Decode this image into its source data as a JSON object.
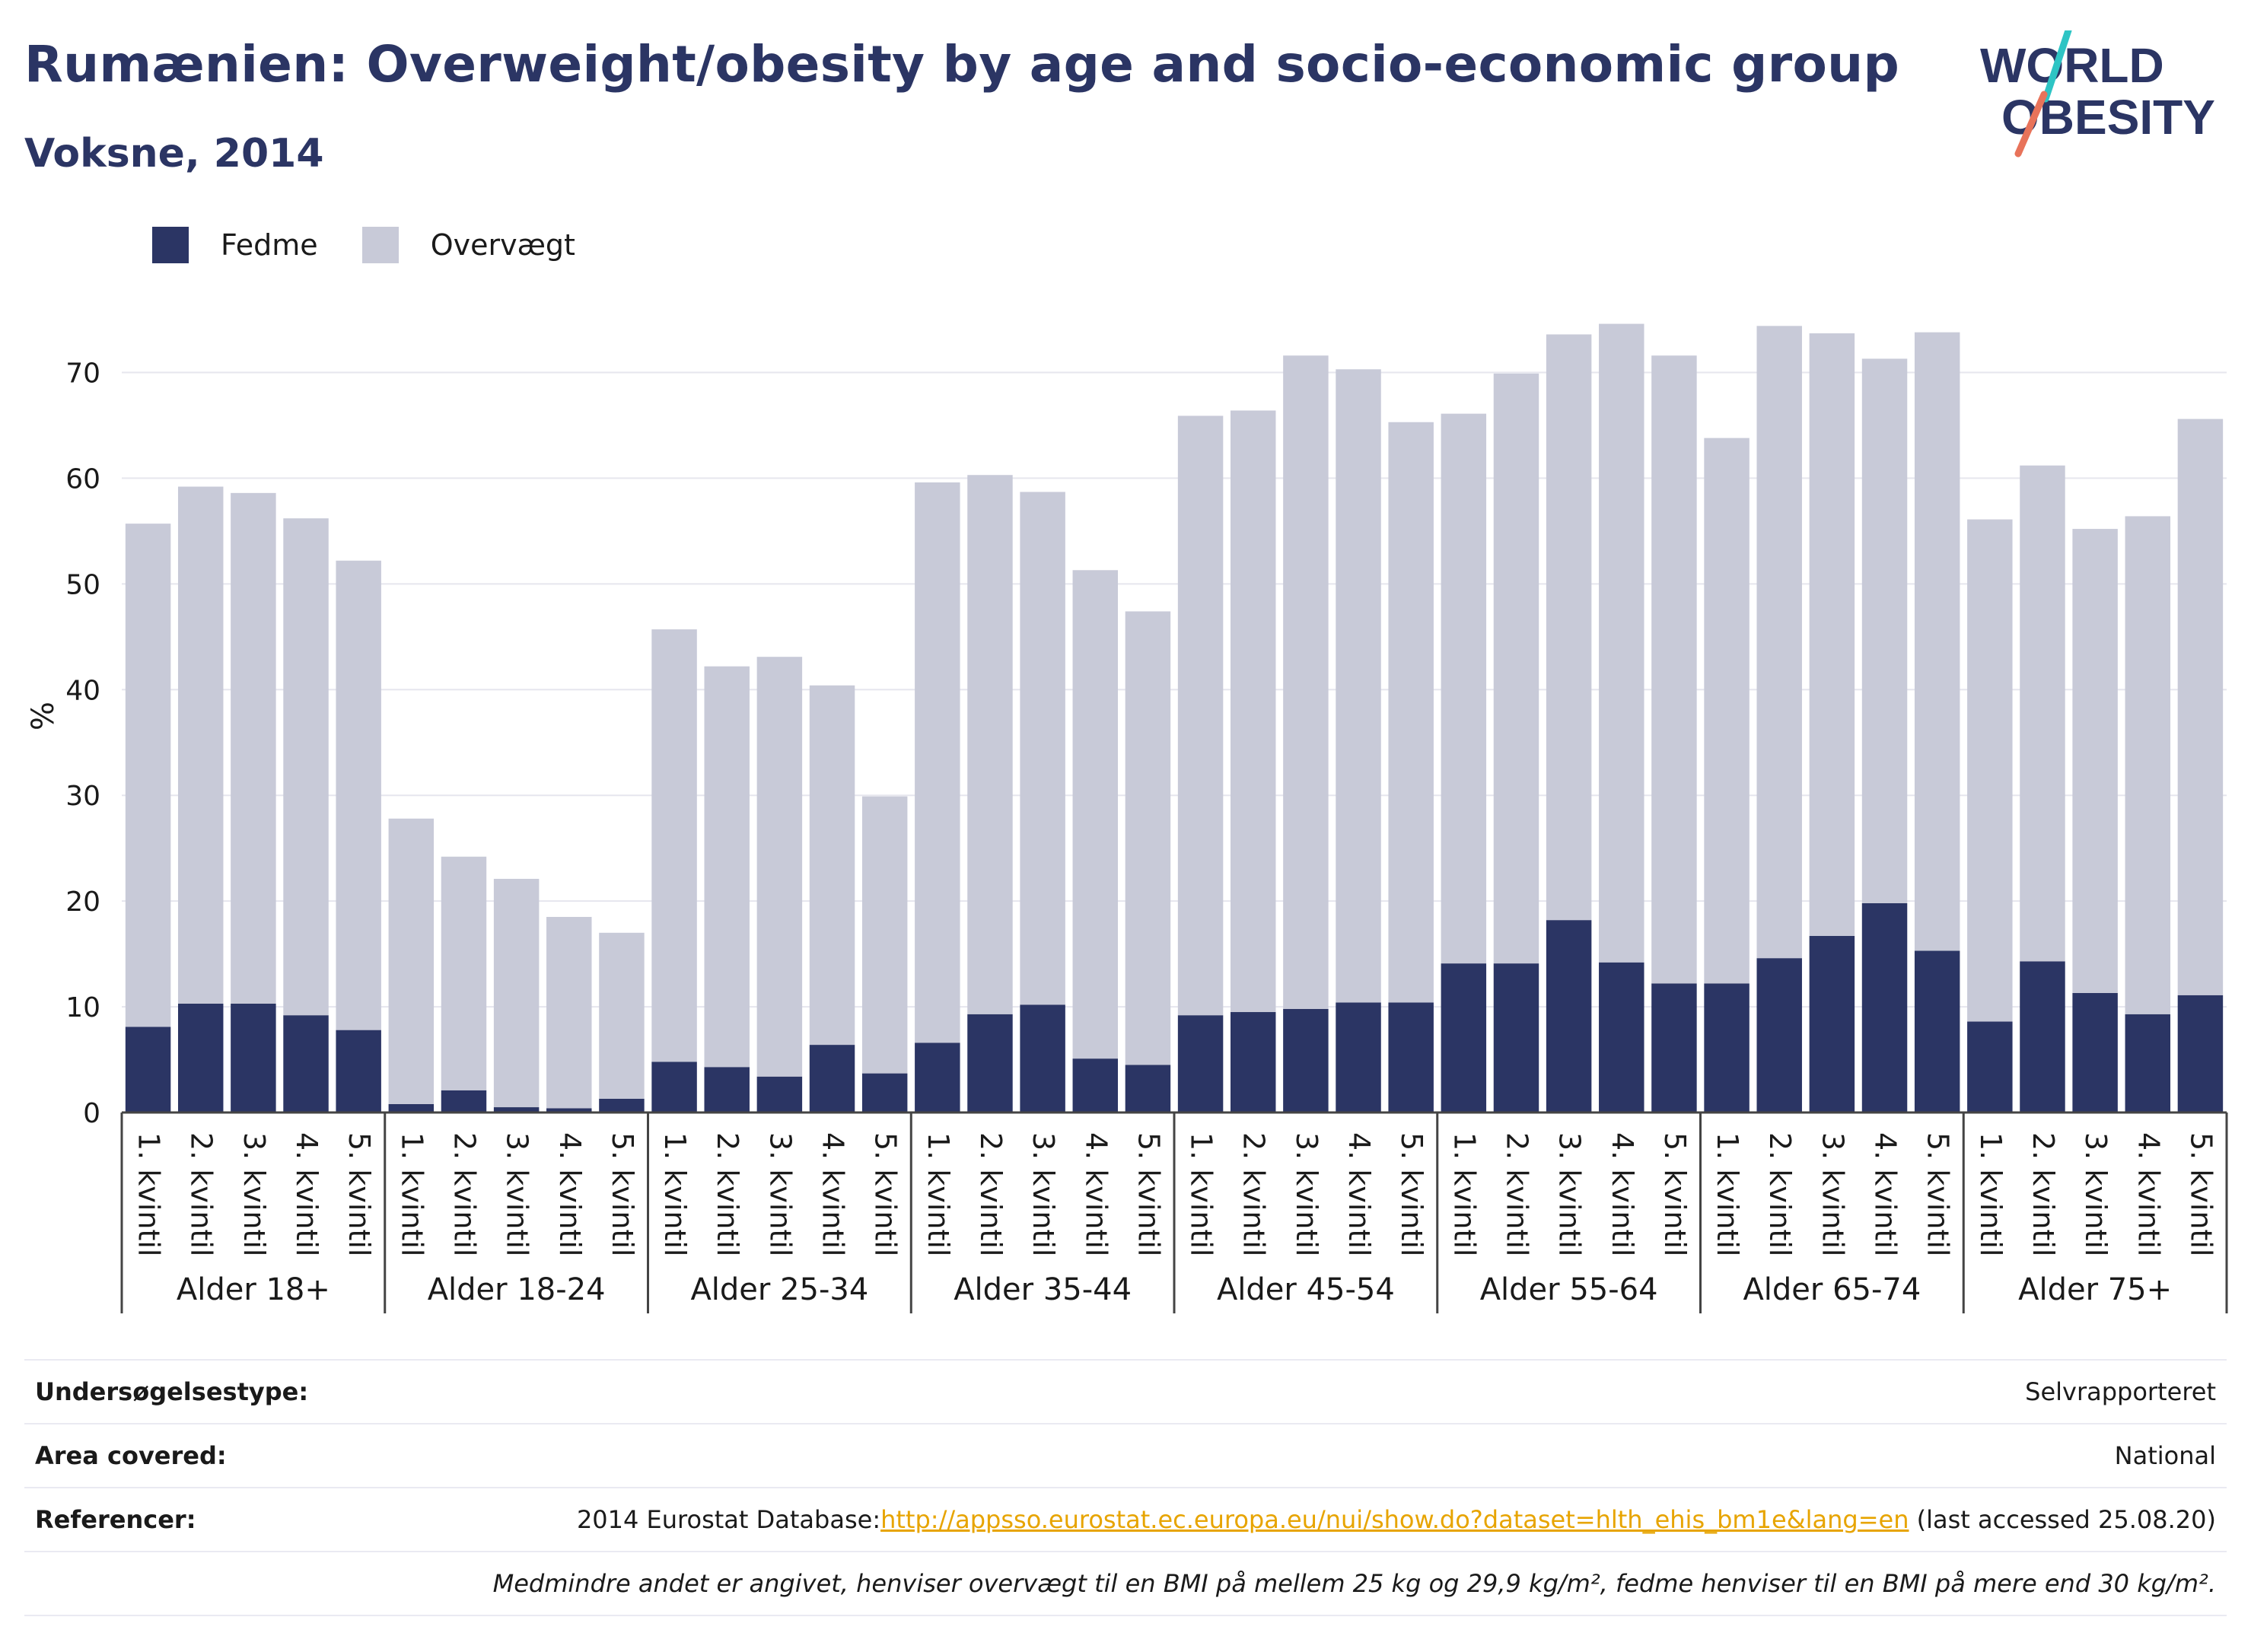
{
  "header": {
    "title": "Rumænien: Overweight/obesity by age and socio-economic group",
    "subtitle": "Voksne, 2014"
  },
  "logo": {
    "line1": "WORLD",
    "line2": "OBESITY",
    "accent_colors": [
      "#2ec4c4",
      "#e8735a"
    ]
  },
  "colors": {
    "fedme": "#2b3564",
    "overvaegt": "#c8cad8",
    "title": "#2b3564",
    "link": "#e7a400"
  },
  "legend": [
    {
      "label": "Fedme",
      "color": "#2b3564"
    },
    {
      "label": "Overvægt",
      "color": "#c8cad8"
    }
  ],
  "chart_data": {
    "type": "bar",
    "stacked": true,
    "ylabel": "%",
    "ylim": [
      0,
      75
    ],
    "yticks": [
      0,
      10,
      20,
      30,
      40,
      50,
      60,
      70
    ],
    "grid": true,
    "legend_position": "top-left",
    "subcategories": [
      "1. kvintil",
      "2. kvintil",
      "3. kvintil",
      "4. kvintil",
      "5. kvintil"
    ],
    "groups": [
      "Alder 18+",
      "Alder 18-24",
      "Alder 25-34",
      "Alder 35-44",
      "Alder 45-54",
      "Alder 55-64",
      "Alder 65-74",
      "Alder 75+"
    ],
    "series": [
      {
        "name": "Fedme",
        "values": [
          [
            8.1,
            10.3,
            10.3,
            9.2,
            7.8
          ],
          [
            0.8,
            2.1,
            0.5,
            0.4,
            1.3
          ],
          [
            4.8,
            4.3,
            3.4,
            6.4,
            3.7
          ],
          [
            6.6,
            9.3,
            10.2,
            5.1,
            4.5
          ],
          [
            9.2,
            9.5,
            9.8,
            10.4,
            10.4
          ],
          [
            14.1,
            14.1,
            18.2,
            14.2,
            12.2
          ],
          [
            12.2,
            14.6,
            16.7,
            19.8,
            15.3
          ],
          [
            8.6,
            14.3,
            11.3,
            9.3,
            11.1
          ]
        ]
      },
      {
        "name": "Overvægt",
        "values": [
          [
            47.6,
            48.9,
            48.3,
            47.0,
            44.4
          ],
          [
            27.0,
            22.1,
            21.6,
            18.1,
            15.7
          ],
          [
            40.9,
            37.9,
            39.7,
            34.0,
            26.2
          ],
          [
            53.0,
            51.0,
            48.5,
            46.2,
            42.9
          ],
          [
            56.7,
            56.9,
            61.8,
            59.9,
            54.9
          ],
          [
            52.0,
            55.8,
            55.4,
            60.4,
            59.4
          ],
          [
            51.6,
            59.8,
            57.0,
            51.5,
            58.5
          ],
          [
            47.5,
            46.9,
            43.9,
            47.1,
            54.5
          ]
        ]
      }
    ]
  },
  "info": {
    "survey_label": "Undersøgelsestype:",
    "survey_value": "Selvrapporteret",
    "area_label": "Area covered:",
    "area_value": "National",
    "ref_label": "Referencer:",
    "ref_prefix": "2014 Eurostat Database:",
    "ref_link": "http://appsso.eurostat.ec.europa.eu/nui/show.do?dataset=hlth_ehis_bm1e&lang=en",
    "ref_suffix": " (last accessed 25.08.20)",
    "note": "Medmindre andet er angivet, henviser overvægt til en BMI på mellem 25 kg og 29,9 kg/m², fedme henviser til en BMI på mere end 30 kg/m²."
  }
}
